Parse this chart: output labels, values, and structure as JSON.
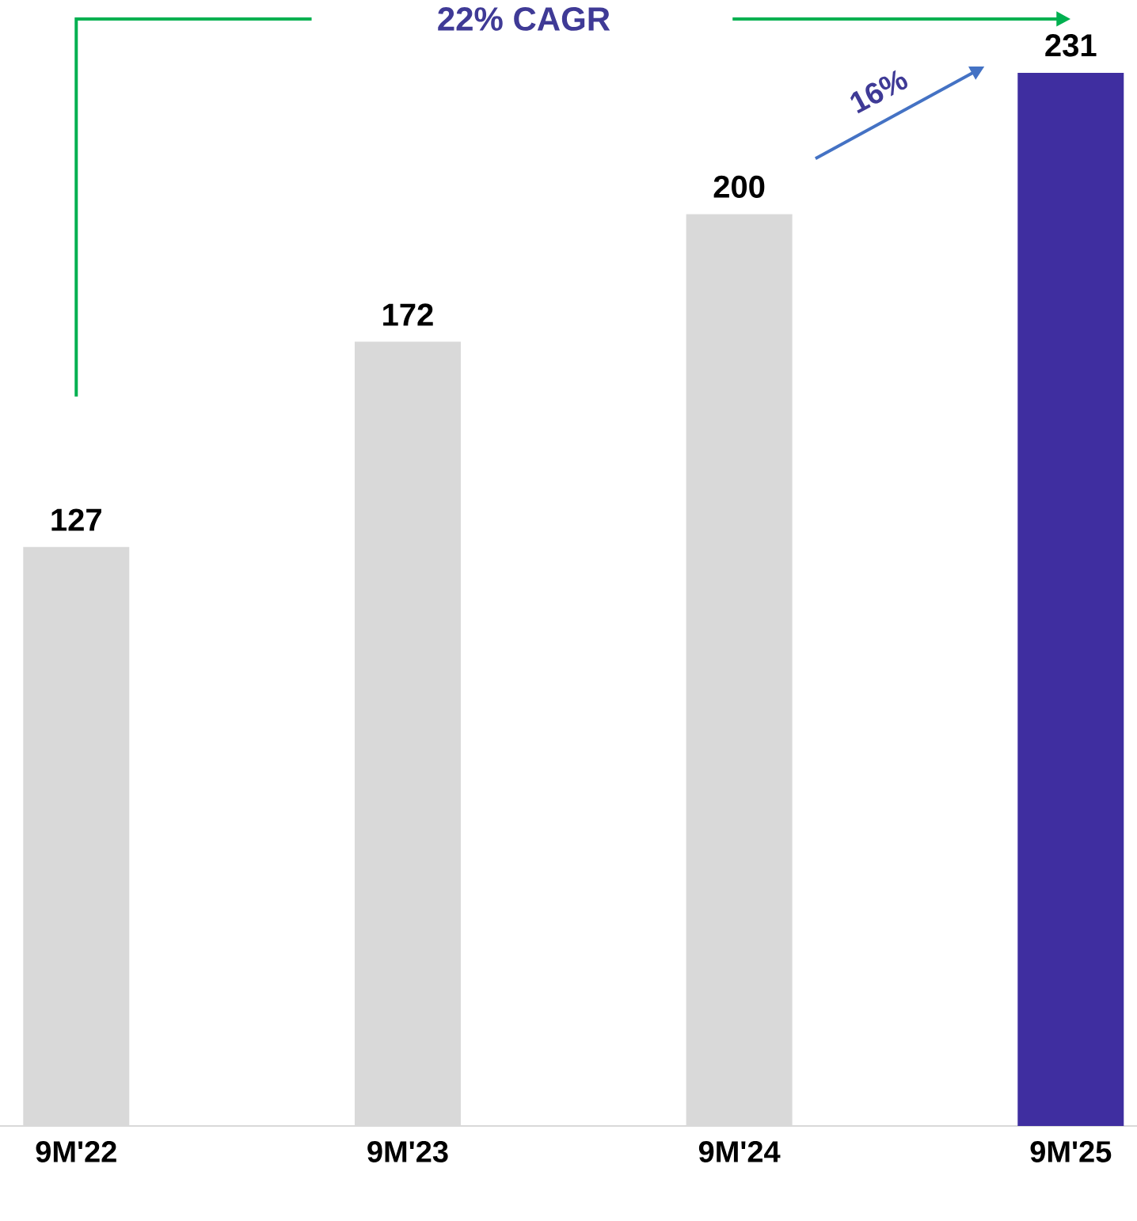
{
  "chart_data": {
    "type": "bar",
    "categories": [
      "9M'22",
      "9M'23",
      "9M'24",
      "9M'25"
    ],
    "values": [
      127,
      172,
      200,
      231
    ],
    "colors": [
      "#d9d9d9",
      "#d9d9d9",
      "#d9d9d9",
      "#3f2ea0"
    ],
    "tick_labels": "x",
    "data_labels": true,
    "annotations": [
      "22% CAGR",
      "16%"
    ]
  }
}
